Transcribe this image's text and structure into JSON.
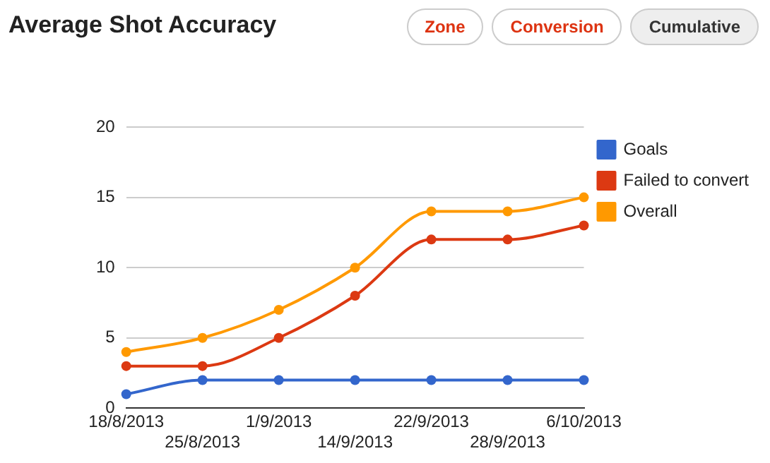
{
  "chart_data": {
    "type": "line",
    "title": "Average Shot Accuracy",
    "categories": [
      "18/8/2013",
      "25/8/2013",
      "1/9/2013",
      "14/9/2013",
      "22/9/2013",
      "28/9/2013",
      "6/10/2013"
    ],
    "series": [
      {
        "name": "Goals",
        "color": "#3366cc",
        "values": [
          1,
          2,
          2,
          2,
          2,
          2,
          2
        ]
      },
      {
        "name": "Failed to convert",
        "color": "#dc3912",
        "values": [
          3,
          3,
          5,
          8,
          12,
          12,
          13
        ]
      },
      {
        "name": "Overall",
        "color": "#ff9900",
        "values": [
          4,
          5,
          7,
          10,
          14,
          14,
          15
        ]
      }
    ],
    "ylim": [
      0,
      20
    ],
    "yticks": [
      0,
      5,
      10,
      15,
      20
    ],
    "grid": "y",
    "legend": "right",
    "marker": "circle",
    "line_style": "solid",
    "annotations": [
      "Zone",
      "Conversion",
      "Cumulative"
    ]
  }
}
